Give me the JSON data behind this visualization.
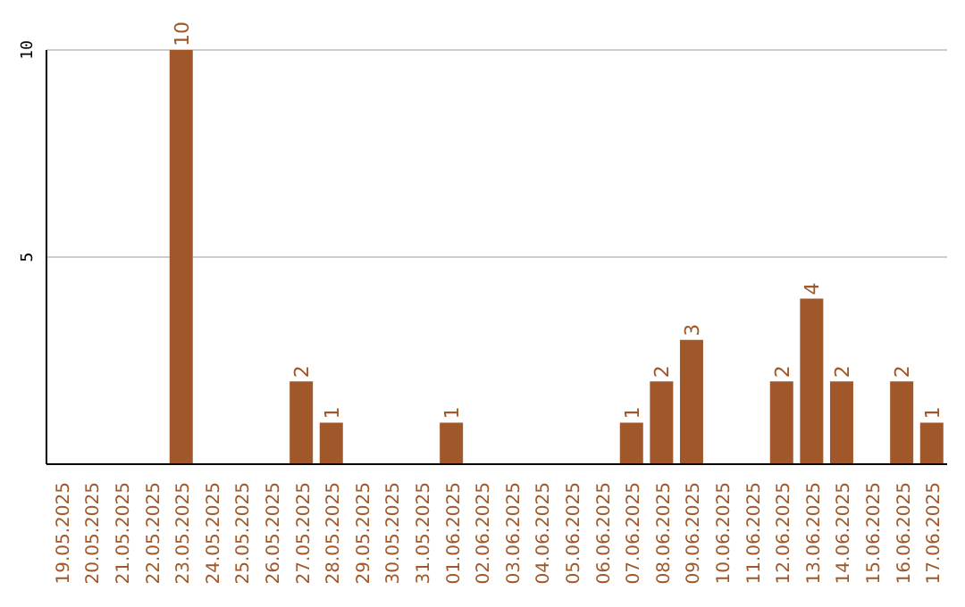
{
  "chart_data": {
    "type": "bar",
    "categories": [
      "19.05.2025",
      "20.05.2025",
      "21.05.2025",
      "22.05.2025",
      "23.05.2025",
      "24.05.2025",
      "25.05.2025",
      "26.05.2025",
      "27.05.2025",
      "28.05.2025",
      "29.05.2025",
      "30.05.2025",
      "31.05.2025",
      "01.06.2025",
      "02.06.2025",
      "03.06.2025",
      "04.06.2025",
      "05.06.2025",
      "06.06.2025",
      "07.06.2025",
      "08.06.2025",
      "09.06.2025",
      "10.06.2025",
      "11.06.2025",
      "12.06.2025",
      "13.06.2025",
      "14.06.2025",
      "15.06.2025",
      "16.06.2025",
      "17.06.2025"
    ],
    "values": [
      0,
      0,
      0,
      0,
      10,
      0,
      0,
      0,
      2,
      1,
      0,
      0,
      0,
      1,
      0,
      0,
      0,
      0,
      0,
      1,
      2,
      3,
      0,
      0,
      2,
      4,
      2,
      0,
      2,
      1
    ],
    "value_labels": [
      null,
      null,
      null,
      null,
      "10",
      null,
      null,
      null,
      "2",
      "1",
      null,
      null,
      null,
      "1",
      null,
      null,
      null,
      null,
      null,
      "1",
      "2",
      "3",
      null,
      null,
      "2",
      "4",
      "2",
      null,
      "2",
      "1"
    ],
    "color": "#a0582a",
    "ylim": [
      0,
      10
    ],
    "yticks": [
      {
        "value": 0,
        "label": null
      },
      5,
      10
    ],
    "grid": "y"
  }
}
